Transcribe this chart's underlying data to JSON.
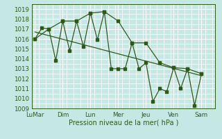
{
  "xlabel": "Pression niveau de la mer( hPa )",
  "bg_color": "#c5e8e5",
  "grid_color": "#ffffff",
  "line_color": "#2d5a1b",
  "ylim": [
    1009,
    1019.5
  ],
  "yticks": [
    1009,
    1010,
    1011,
    1012,
    1013,
    1014,
    1015,
    1016,
    1017,
    1018,
    1019
  ],
  "xtick_labels": [
    "LuMar",
    "Dim",
    "Lun",
    "Mer",
    "Jeu",
    "Ven",
    "Sam"
  ],
  "xtick_pos": [
    0,
    2,
    4,
    6,
    8,
    10,
    12
  ],
  "xlim": [
    -0.2,
    13.0
  ],
  "series1_x": [
    0,
    0.5,
    1,
    1.5,
    2,
    2.5,
    3,
    3.5,
    4,
    4.5,
    5,
    5.5,
    6,
    6.5,
    7,
    7.5,
    8,
    8.5,
    9,
    9.5,
    10,
    10.5,
    11,
    11.5,
    12
  ],
  "series1_y": [
    1016.0,
    1017.1,
    1017.0,
    1013.8,
    1017.8,
    1014.8,
    1017.8,
    1015.2,
    1018.6,
    1015.9,
    1018.75,
    1013.0,
    1013.0,
    1013.0,
    1015.6,
    1013.0,
    1013.6,
    1009.7,
    1011.0,
    1010.7,
    1013.1,
    1011.0,
    1013.0,
    1009.3,
    1012.5
  ],
  "series2_x": [
    0,
    1,
    2,
    3,
    4,
    5,
    6,
    7,
    8,
    9,
    10,
    11,
    12
  ],
  "series2_y": [
    1016.0,
    1017.0,
    1017.8,
    1017.8,
    1018.6,
    1018.75,
    1017.8,
    1015.6,
    1015.6,
    1013.6,
    1013.1,
    1013.0,
    1012.5
  ],
  "trend_x": [
    0,
    12
  ],
  "trend_y": [
    1016.7,
    1012.3
  ]
}
